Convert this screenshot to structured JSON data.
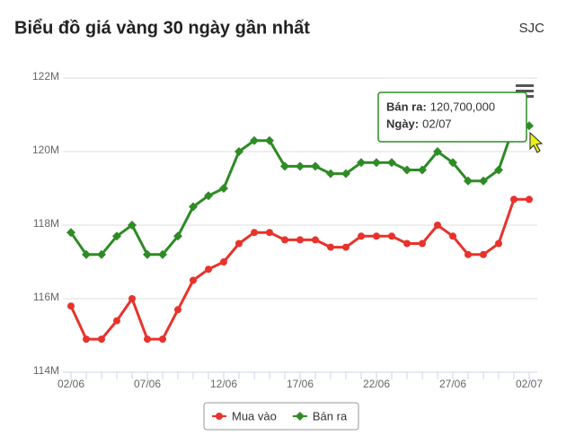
{
  "chart_data": {
    "type": "line",
    "title": "Biểu đồ giá vàng 30 ngày gần nhất",
    "subtitle": "SJC",
    "categories": [
      "02/06",
      null,
      null,
      null,
      null,
      "07/06",
      null,
      null,
      null,
      null,
      "12/06",
      null,
      null,
      null,
      null,
      "17/06",
      null,
      null,
      null,
      null,
      "22/06",
      null,
      null,
      null,
      null,
      "27/06",
      null,
      null,
      null,
      null,
      "02/07"
    ],
    "series": [
      {
        "name": "Mua vào",
        "color": "#e8332c",
        "marker": "circle",
        "values": [
          115800000,
          114900000,
          114900000,
          115400000,
          116000000,
          114900000,
          114900000,
          115700000,
          116500000,
          116800000,
          117000000,
          117500000,
          117800000,
          117800000,
          117600000,
          117600000,
          117600000,
          117400000,
          117400000,
          117700000,
          117700000,
          117700000,
          117500000,
          117500000,
          118000000,
          117700000,
          117200000,
          117200000,
          117500000,
          118700000,
          118700000
        ]
      },
      {
        "name": "Bán ra",
        "color": "#2e8b25",
        "marker": "diamond",
        "values": [
          117800000,
          117200000,
          117200000,
          117700000,
          118000000,
          117200000,
          117200000,
          117700000,
          118500000,
          118800000,
          119000000,
          120000000,
          120300000,
          120300000,
          119600000,
          119600000,
          119600000,
          119400000,
          119400000,
          119700000,
          119700000,
          119700000,
          119500000,
          119500000,
          120000000,
          119700000,
          119200000,
          119200000,
          119500000,
          120700000,
          120700000
        ]
      }
    ],
    "ylim": [
      114000000,
      122000000
    ],
    "yticks": [
      {
        "value": 114000000,
        "label": "114M"
      },
      {
        "value": 116000000,
        "label": "116M"
      },
      {
        "value": 118000000,
        "label": "118M"
      },
      {
        "value": 120000000,
        "label": "120M"
      },
      {
        "value": 122000000,
        "label": "122M"
      }
    ],
    "grid": true,
    "legend": "bottom",
    "tooltip": {
      "name": "Bán ra:",
      "value": "120,700,000",
      "date_label": "Ngày:",
      "date": "02/07"
    }
  }
}
